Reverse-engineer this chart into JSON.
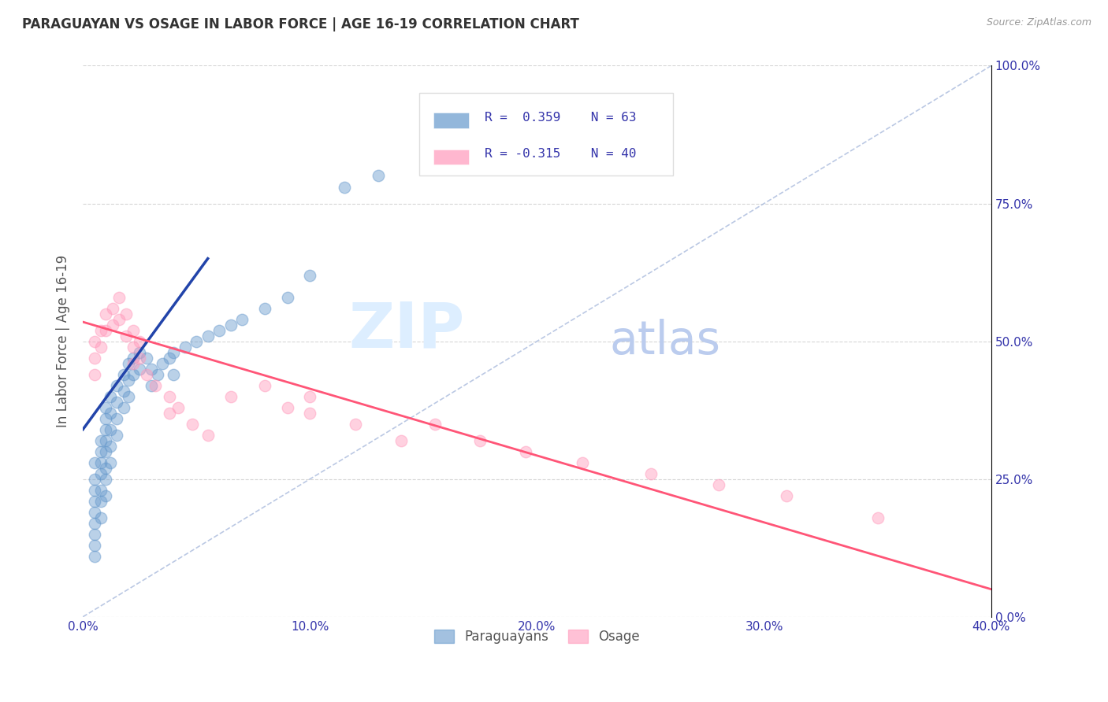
{
  "title": "PARAGUAYAN VS OSAGE IN LABOR FORCE | AGE 16-19 CORRELATION CHART",
  "source": "Source: ZipAtlas.com",
  "xlim": [
    0.0,
    0.4
  ],
  "ylim": [
    0.0,
    1.0
  ],
  "paraguayan_color": "#6699CC",
  "osage_color": "#FF99BB",
  "trend_blue": "#2244AA",
  "trend_pink": "#FF5577",
  "ref_line_color": "#AABBDD",
  "legend_label1": "Paraguayans",
  "legend_label2": "Osage",
  "paraguayan_x": [
    0.005,
    0.005,
    0.005,
    0.005,
    0.005,
    0.005,
    0.005,
    0.005,
    0.005,
    0.008,
    0.008,
    0.008,
    0.008,
    0.008,
    0.008,
    0.008,
    0.01,
    0.01,
    0.01,
    0.01,
    0.01,
    0.01,
    0.01,
    0.01,
    0.012,
    0.012,
    0.012,
    0.012,
    0.012,
    0.015,
    0.015,
    0.015,
    0.015,
    0.018,
    0.018,
    0.018,
    0.02,
    0.02,
    0.02,
    0.022,
    0.022,
    0.025,
    0.025,
    0.028,
    0.03,
    0.03,
    0.033,
    0.035,
    0.038,
    0.04,
    0.04,
    0.045,
    0.05,
    0.055,
    0.06,
    0.065,
    0.07,
    0.08,
    0.09,
    0.1,
    0.115,
    0.13,
    0.155
  ],
  "paraguayan_y": [
    0.28,
    0.25,
    0.23,
    0.21,
    0.19,
    0.17,
    0.15,
    0.13,
    0.11,
    0.32,
    0.3,
    0.28,
    0.26,
    0.23,
    0.21,
    0.18,
    0.38,
    0.36,
    0.34,
    0.32,
    0.3,
    0.27,
    0.25,
    0.22,
    0.4,
    0.37,
    0.34,
    0.31,
    0.28,
    0.42,
    0.39,
    0.36,
    0.33,
    0.44,
    0.41,
    0.38,
    0.46,
    0.43,
    0.4,
    0.47,
    0.44,
    0.48,
    0.45,
    0.47,
    0.45,
    0.42,
    0.44,
    0.46,
    0.47,
    0.48,
    0.44,
    0.49,
    0.5,
    0.51,
    0.52,
    0.53,
    0.54,
    0.56,
    0.58,
    0.62,
    0.78,
    0.8,
    0.82
  ],
  "osage_x": [
    0.005,
    0.005,
    0.005,
    0.008,
    0.008,
    0.01,
    0.01,
    0.013,
    0.013,
    0.016,
    0.016,
    0.019,
    0.019,
    0.022,
    0.022,
    0.022,
    0.025,
    0.025,
    0.028,
    0.032,
    0.038,
    0.038,
    0.042,
    0.048,
    0.055,
    0.065,
    0.08,
    0.09,
    0.1,
    0.1,
    0.12,
    0.14,
    0.155,
    0.175,
    0.195,
    0.22,
    0.25,
    0.28,
    0.31,
    0.35
  ],
  "osage_y": [
    0.5,
    0.47,
    0.44,
    0.52,
    0.49,
    0.55,
    0.52,
    0.56,
    0.53,
    0.58,
    0.54,
    0.55,
    0.51,
    0.52,
    0.49,
    0.46,
    0.5,
    0.47,
    0.44,
    0.42,
    0.4,
    0.37,
    0.38,
    0.35,
    0.33,
    0.4,
    0.42,
    0.38,
    0.4,
    0.37,
    0.35,
    0.32,
    0.35,
    0.32,
    0.3,
    0.28,
    0.26,
    0.24,
    0.22,
    0.18
  ],
  "blue_trend_x": [
    0.0,
    0.055
  ],
  "blue_trend_y": [
    0.34,
    0.65
  ],
  "pink_trend_x": [
    0.0,
    0.4
  ],
  "pink_trend_y": [
    0.535,
    0.05
  ],
  "ref_line_x": [
    0.0,
    0.4
  ],
  "ref_line_y": [
    0.0,
    1.0
  ],
  "grid_color": "#CCCCCC",
  "title_color": "#333333",
  "axis_label_color": "#555555",
  "tick_color": "#3333AA",
  "background_color": "#FFFFFF",
  "watermark_zip": "ZIP",
  "watermark_atlas": "atlas",
  "watermark_color_zip": "#DDEEFF",
  "watermark_color_atlas": "#BBCCEE"
}
